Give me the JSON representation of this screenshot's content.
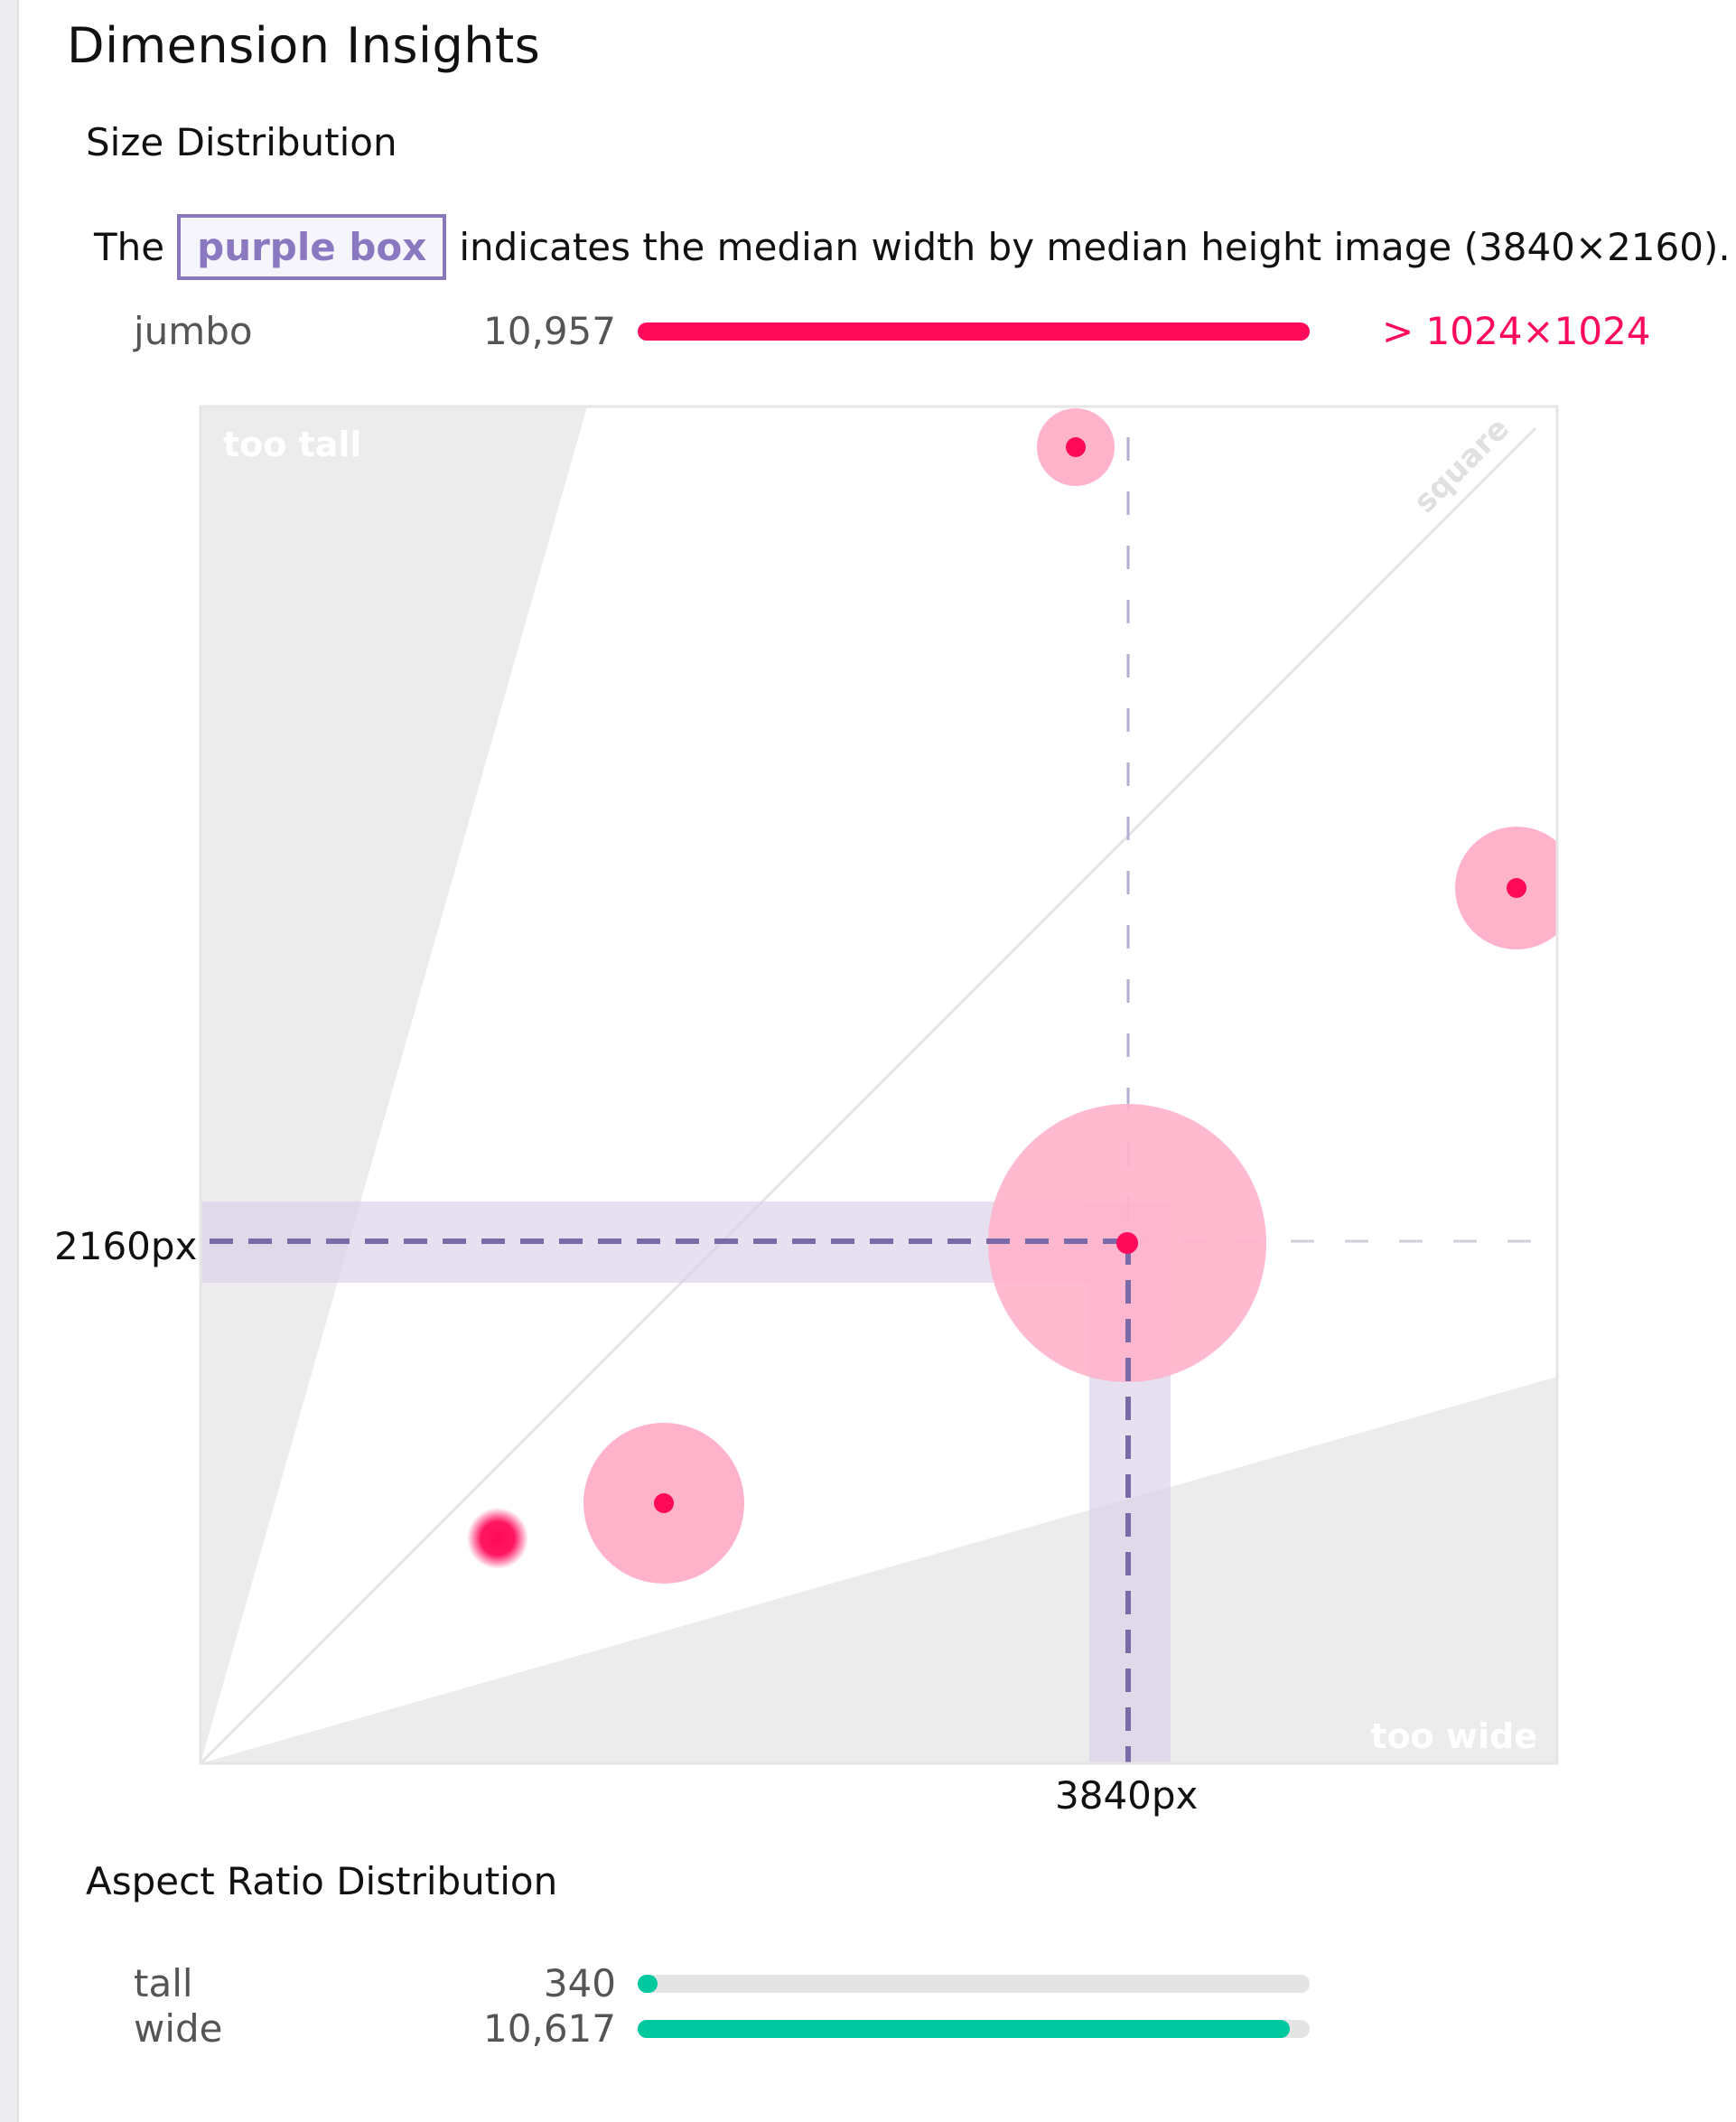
{
  "page": {
    "title": "Dimension Insights"
  },
  "size_distribution": {
    "title": "Size Distribution",
    "description_prefix": "The",
    "highlight_label": "purple box",
    "description_suffix": "indicates the median width by median height image (3840×2160).",
    "jumbo": {
      "label": "jumbo",
      "count": "10,957",
      "fraction": 1.0,
      "note": "> 1024×1024",
      "color": "#ff0a5a"
    },
    "plot": {
      "region_labels": {
        "too_tall": "too tall",
        "square": "square",
        "too_wide": "too wide"
      },
      "median_width_label": "3840px",
      "median_height_label": "2160px",
      "colors": {
        "point": "#ff0a5a",
        "bubble": "#ffb3cb",
        "median_band": "#d8d0ea",
        "median_line": "#7a6aa8",
        "region_shade": "#ececec"
      }
    }
  },
  "aspect_ratio_distribution": {
    "title": "Aspect Ratio Distribution",
    "rows": [
      {
        "label": "tall",
        "count": "340",
        "fraction": 0.03,
        "color": "#00c9a0"
      },
      {
        "label": "wide",
        "count": "10,617",
        "fraction": 0.97,
        "color": "#00c9a0"
      }
    ]
  }
}
